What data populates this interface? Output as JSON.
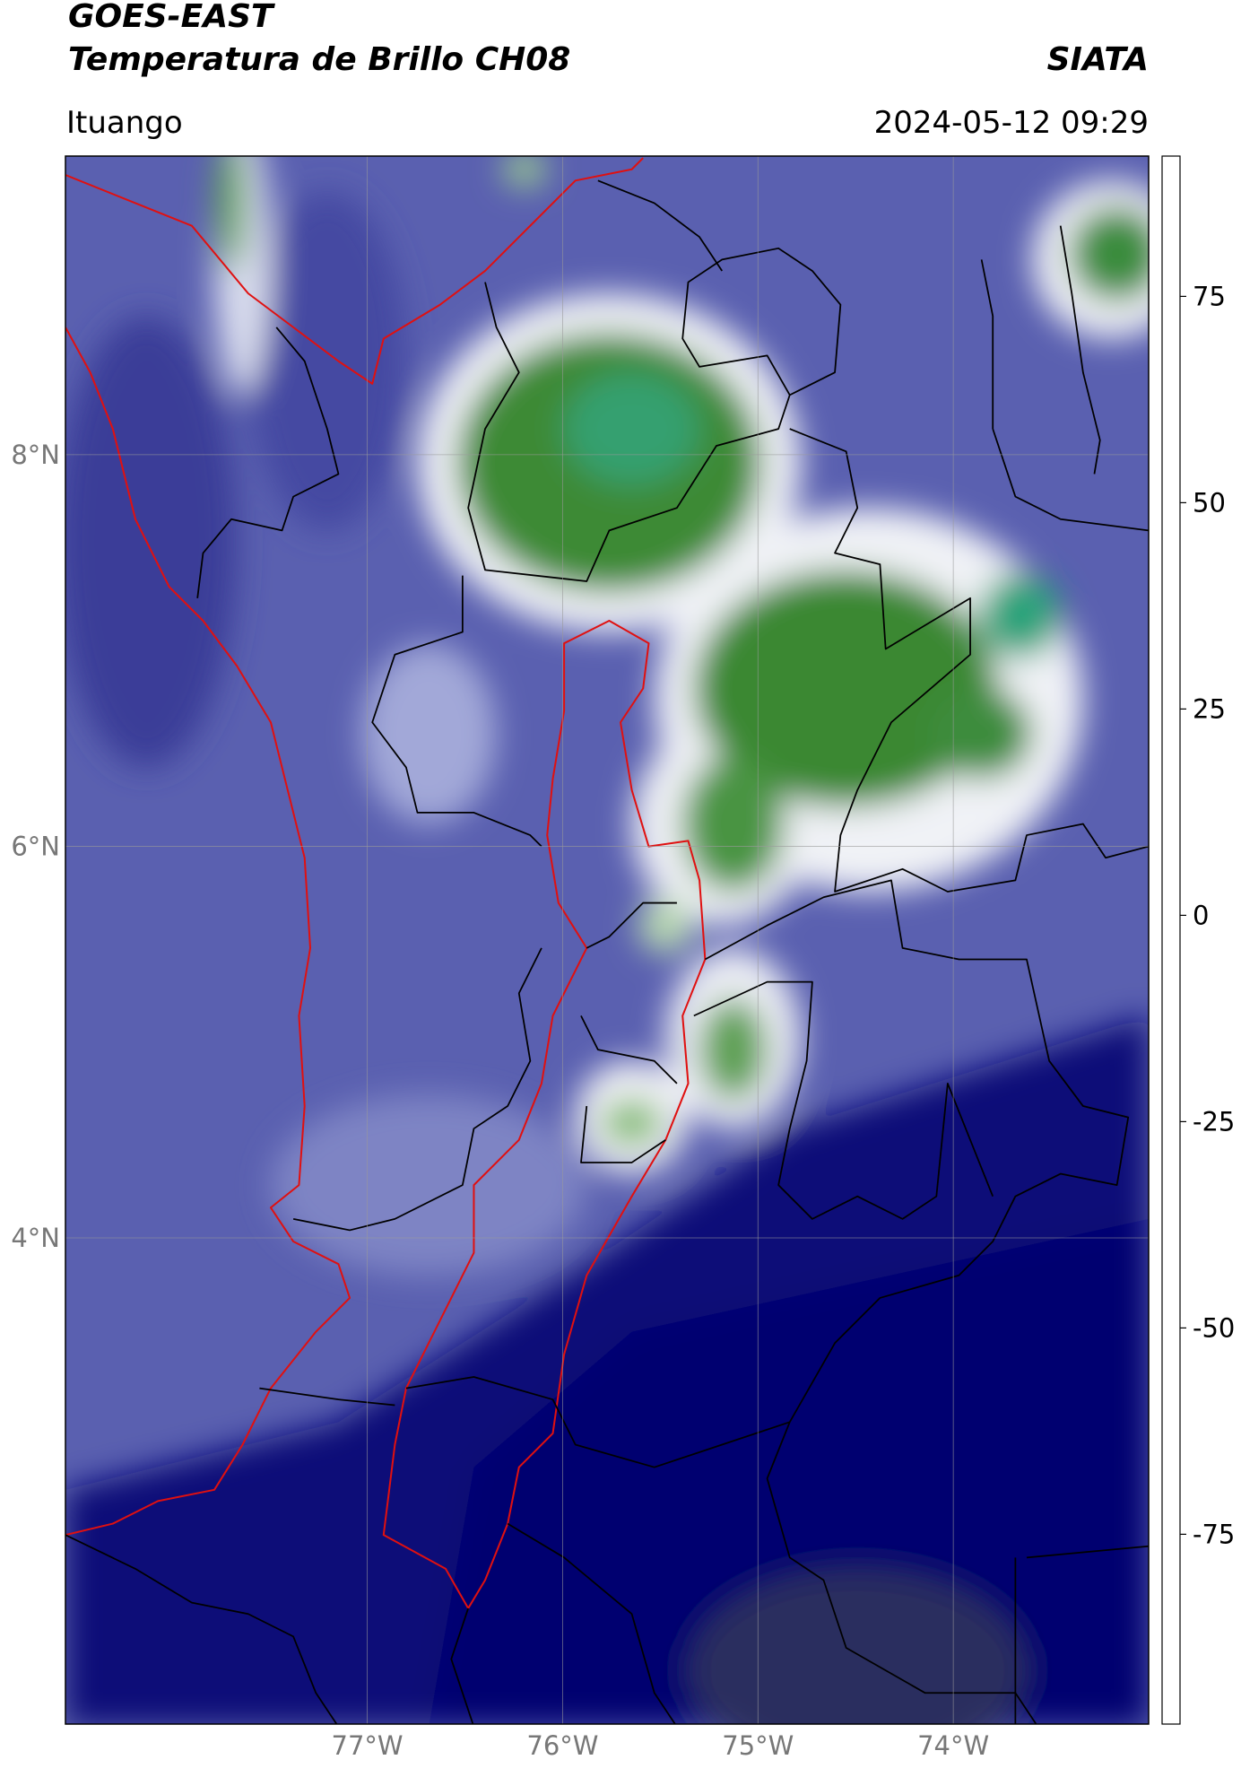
{
  "header": {
    "title": "GOES-EAST",
    "subtitle": "Temperatura de Brillo CH08",
    "source": "SIATA",
    "location": "Ituango",
    "datetime": "2024-05-12 09:29"
  },
  "map": {
    "lon_range": [
      -78.545,
      -73.0
    ],
    "lat_range": [
      1.517,
      9.525
    ],
    "lat_ticks": [
      {
        "value": 8,
        "label": "8°N"
      },
      {
        "value": 6,
        "label": "6°N"
      },
      {
        "value": 4,
        "label": "4°N"
      }
    ],
    "lon_ticks": [
      {
        "value": -77,
        "label": "77°W"
      },
      {
        "value": -76,
        "label": "76°W"
      },
      {
        "value": -75,
        "label": "75°W"
      },
      {
        "value": -74,
        "label": "74°W"
      }
    ],
    "grid": true
  },
  "colorbar": {
    "range": [
      -98,
      92
    ],
    "ticks": [
      75,
      50,
      25,
      0,
      -25,
      -50,
      -75
    ],
    "stops": [
      [
        -98,
        "#ffffff"
      ],
      [
        -95,
        "#ffffff"
      ],
      [
        -95,
        "#00e8e0"
      ],
      [
        -80,
        "#1fa088"
      ],
      [
        -70,
        "#2e7d22"
      ],
      [
        -60,
        "#a6cf9c"
      ],
      [
        -55,
        "#f4f6f4"
      ],
      [
        -50,
        "#ffffff"
      ],
      [
        -42,
        "#9aa0d2"
      ],
      [
        -32,
        "#4a4aa8"
      ],
      [
        -27,
        "#000070"
      ],
      [
        -25,
        "#3a3a55"
      ],
      [
        -20,
        "#8a8a30"
      ],
      [
        -15,
        "#ffff00"
      ],
      [
        0,
        "#ff9a00"
      ],
      [
        8,
        "#ff0000"
      ],
      [
        8,
        "#000000"
      ],
      [
        92,
        "#000000"
      ]
    ]
  }
}
